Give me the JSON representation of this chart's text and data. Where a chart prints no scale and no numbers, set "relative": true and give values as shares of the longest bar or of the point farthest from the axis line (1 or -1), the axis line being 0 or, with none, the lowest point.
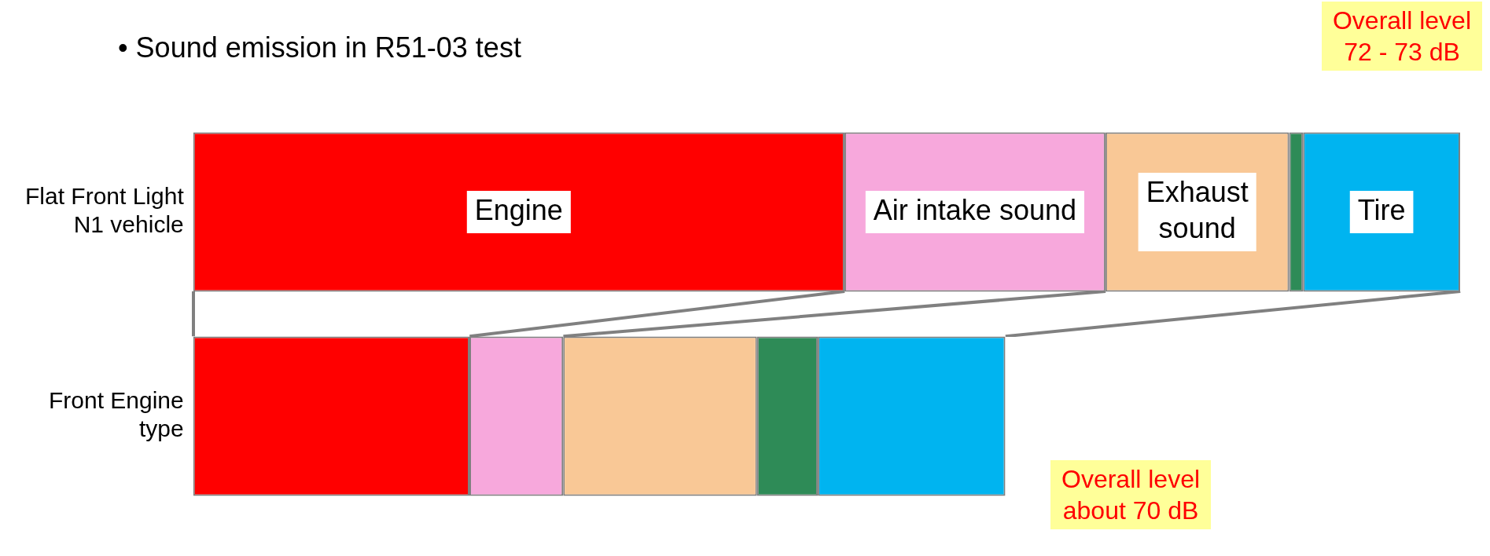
{
  "chart_data": {
    "type": "bar",
    "orientation": "horizontal",
    "stacked": true,
    "relative": true,
    "title": "• Sound emission in R51-03 test",
    "annotations": [
      "Overall level 72 - 73 dB",
      "Overall level about 70 dB"
    ],
    "categories": [
      "Flat Front Light N1 vehicle",
      "Front Engine type"
    ],
    "series": [
      {
        "name": "Engine",
        "color": "#ff0000",
        "values": [
          0.514,
          0.218
        ]
      },
      {
        "name": "Air intake sound",
        "color": "#f7a8dc",
        "values": [
          0.206,
          0.074
        ]
      },
      {
        "name": "Exhaust sound",
        "color": "#f9c896",
        "values": [
          0.145,
          0.153
        ]
      },
      {
        "color": "#2e8b57",
        "values": [
          0.011,
          0.048
        ]
      },
      {
        "name": "Tire",
        "color": "#00b4f0",
        "values": [
          0.124,
          0.148
        ]
      }
    ],
    "legend": false,
    "grid": false,
    "tick_labels": "y"
  }
}
